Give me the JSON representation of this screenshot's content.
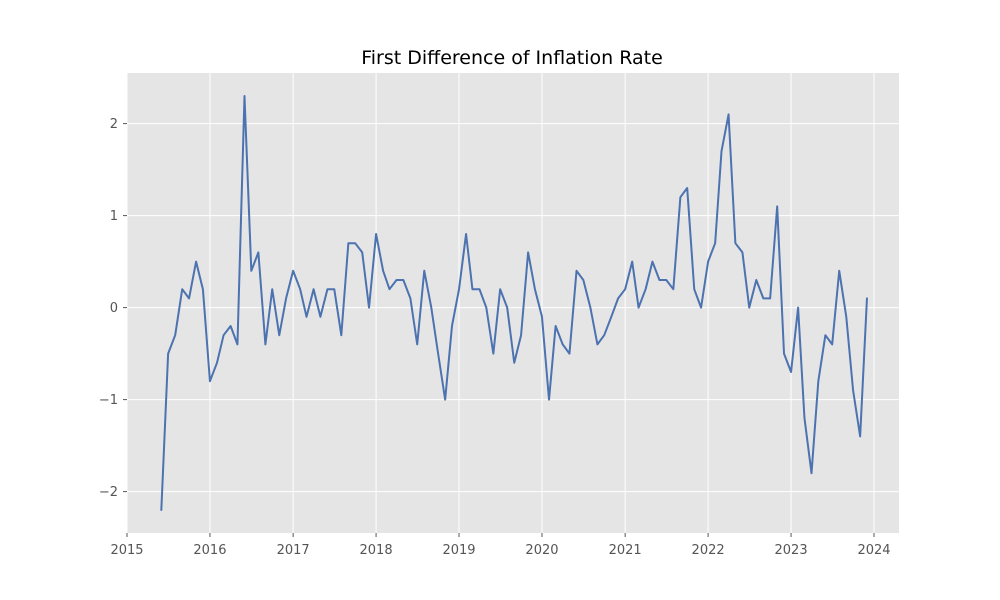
{
  "chart_data": {
    "type": "line",
    "title": "First Difference of Inflation Rate",
    "xlabel": "",
    "ylabel": "",
    "x_axis": {
      "type": "date",
      "range": [
        "2015-01-01",
        "2024-04-20"
      ],
      "tick_values": [
        "2015-01-01",
        "2016-01-01",
        "2017-01-01",
        "2018-01-01",
        "2019-01-01",
        "2020-01-01",
        "2021-01-01",
        "2022-01-01",
        "2023-01-01",
        "2024-01-01"
      ],
      "tick_labels": [
        "2015",
        "2016",
        "2017",
        "2018",
        "2019",
        "2020",
        "2021",
        "2022",
        "2023",
        "2024"
      ]
    },
    "y_axis": {
      "range": [
        -2.45,
        2.55
      ],
      "tick_values": [
        -2,
        -1,
        0,
        1,
        2
      ],
      "tick_labels": [
        "−2",
        "−1",
        "0",
        "1",
        "2"
      ]
    },
    "grid": true,
    "legend": "none",
    "colors": {
      "line": "#4c72b0",
      "plot_background": "#e5e5e5",
      "grid": "#ffffff",
      "figure_background": "#ffffff"
    },
    "series": [
      {
        "start": "2015-06",
        "frequency": "monthly",
        "values": [
          -2.2,
          -0.5,
          -0.3,
          0.2,
          0.1,
          0.5,
          0.2,
          -0.8,
          -0.6,
          -0.3,
          -0.2,
          -0.4,
          2.3,
          0.4,
          0.6,
          -0.4,
          0.2,
          -0.3,
          0.1,
          0.4,
          0.2,
          -0.1,
          0.2,
          -0.1,
          0.2,
          0.2,
          -0.3,
          0.7,
          0.7,
          0.6,
          0.0,
          0.8,
          0.4,
          0.2,
          0.3,
          0.3,
          0.1,
          -0.4,
          0.4,
          0.0,
          -0.5,
          -1.0,
          -0.2,
          0.2,
          0.8,
          0.2,
          0.2,
          0.0,
          -0.5,
          0.2,
          0.0,
          -0.6,
          -0.3,
          0.6,
          0.2,
          -0.1,
          -1.0,
          -0.2,
          -0.4,
          -0.5,
          0.4,
          0.3,
          0.0,
          -0.4,
          -0.3,
          -0.1,
          0.1,
          0.2,
          0.5,
          0.0,
          0.2,
          0.5,
          0.3,
          0.3,
          0.2,
          1.2,
          1.3,
          0.2,
          0.0,
          0.5,
          0.7,
          1.7,
          2.1,
          0.7,
          0.6,
          0.0,
          0.3,
          0.1,
          0.1,
          1.1,
          -0.5,
          -0.7,
          0.0,
          -1.2,
          -1.8,
          -0.8,
          -0.3,
          -0.4,
          0.4,
          -0.1,
          -0.9,
          -1.4,
          0.1
        ]
      }
    ]
  }
}
